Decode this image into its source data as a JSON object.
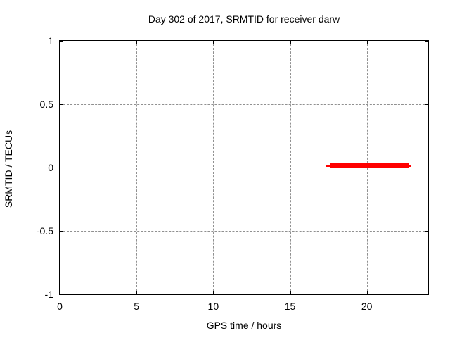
{
  "chart_data": {
    "type": "line",
    "title": "Day 302 of 2017, SRMTID for receiver darw",
    "xlabel": "GPS time / hours",
    "ylabel": "SRMTID / TECUs",
    "xlim": [
      0,
      24
    ],
    "ylim": [
      -1,
      1
    ],
    "xticks": [
      0,
      5,
      10,
      15,
      20
    ],
    "yticks": [
      -1,
      -0.5,
      0,
      0.5,
      1
    ],
    "grid": true,
    "grid_color": "#909090",
    "axis_color": "#000000",
    "background_color": "#ffffff",
    "series": [
      {
        "name": "SRMTID",
        "color": "#ff0000",
        "y_approx": 0.015,
        "x_start": 17.3,
        "x_end": 22.85,
        "note": "flat thick red trace at ~0 TECUs spanning roughly 17.3 to 22.9 hours",
        "segments": [
          {
            "x1": 17.3,
            "x2": 17.6,
            "linewidth": 3
          },
          {
            "x1": 17.6,
            "x2": 22.7,
            "linewidth": 8
          },
          {
            "x1": 22.7,
            "x2": 22.85,
            "linewidth": 3
          }
        ]
      }
    ]
  }
}
